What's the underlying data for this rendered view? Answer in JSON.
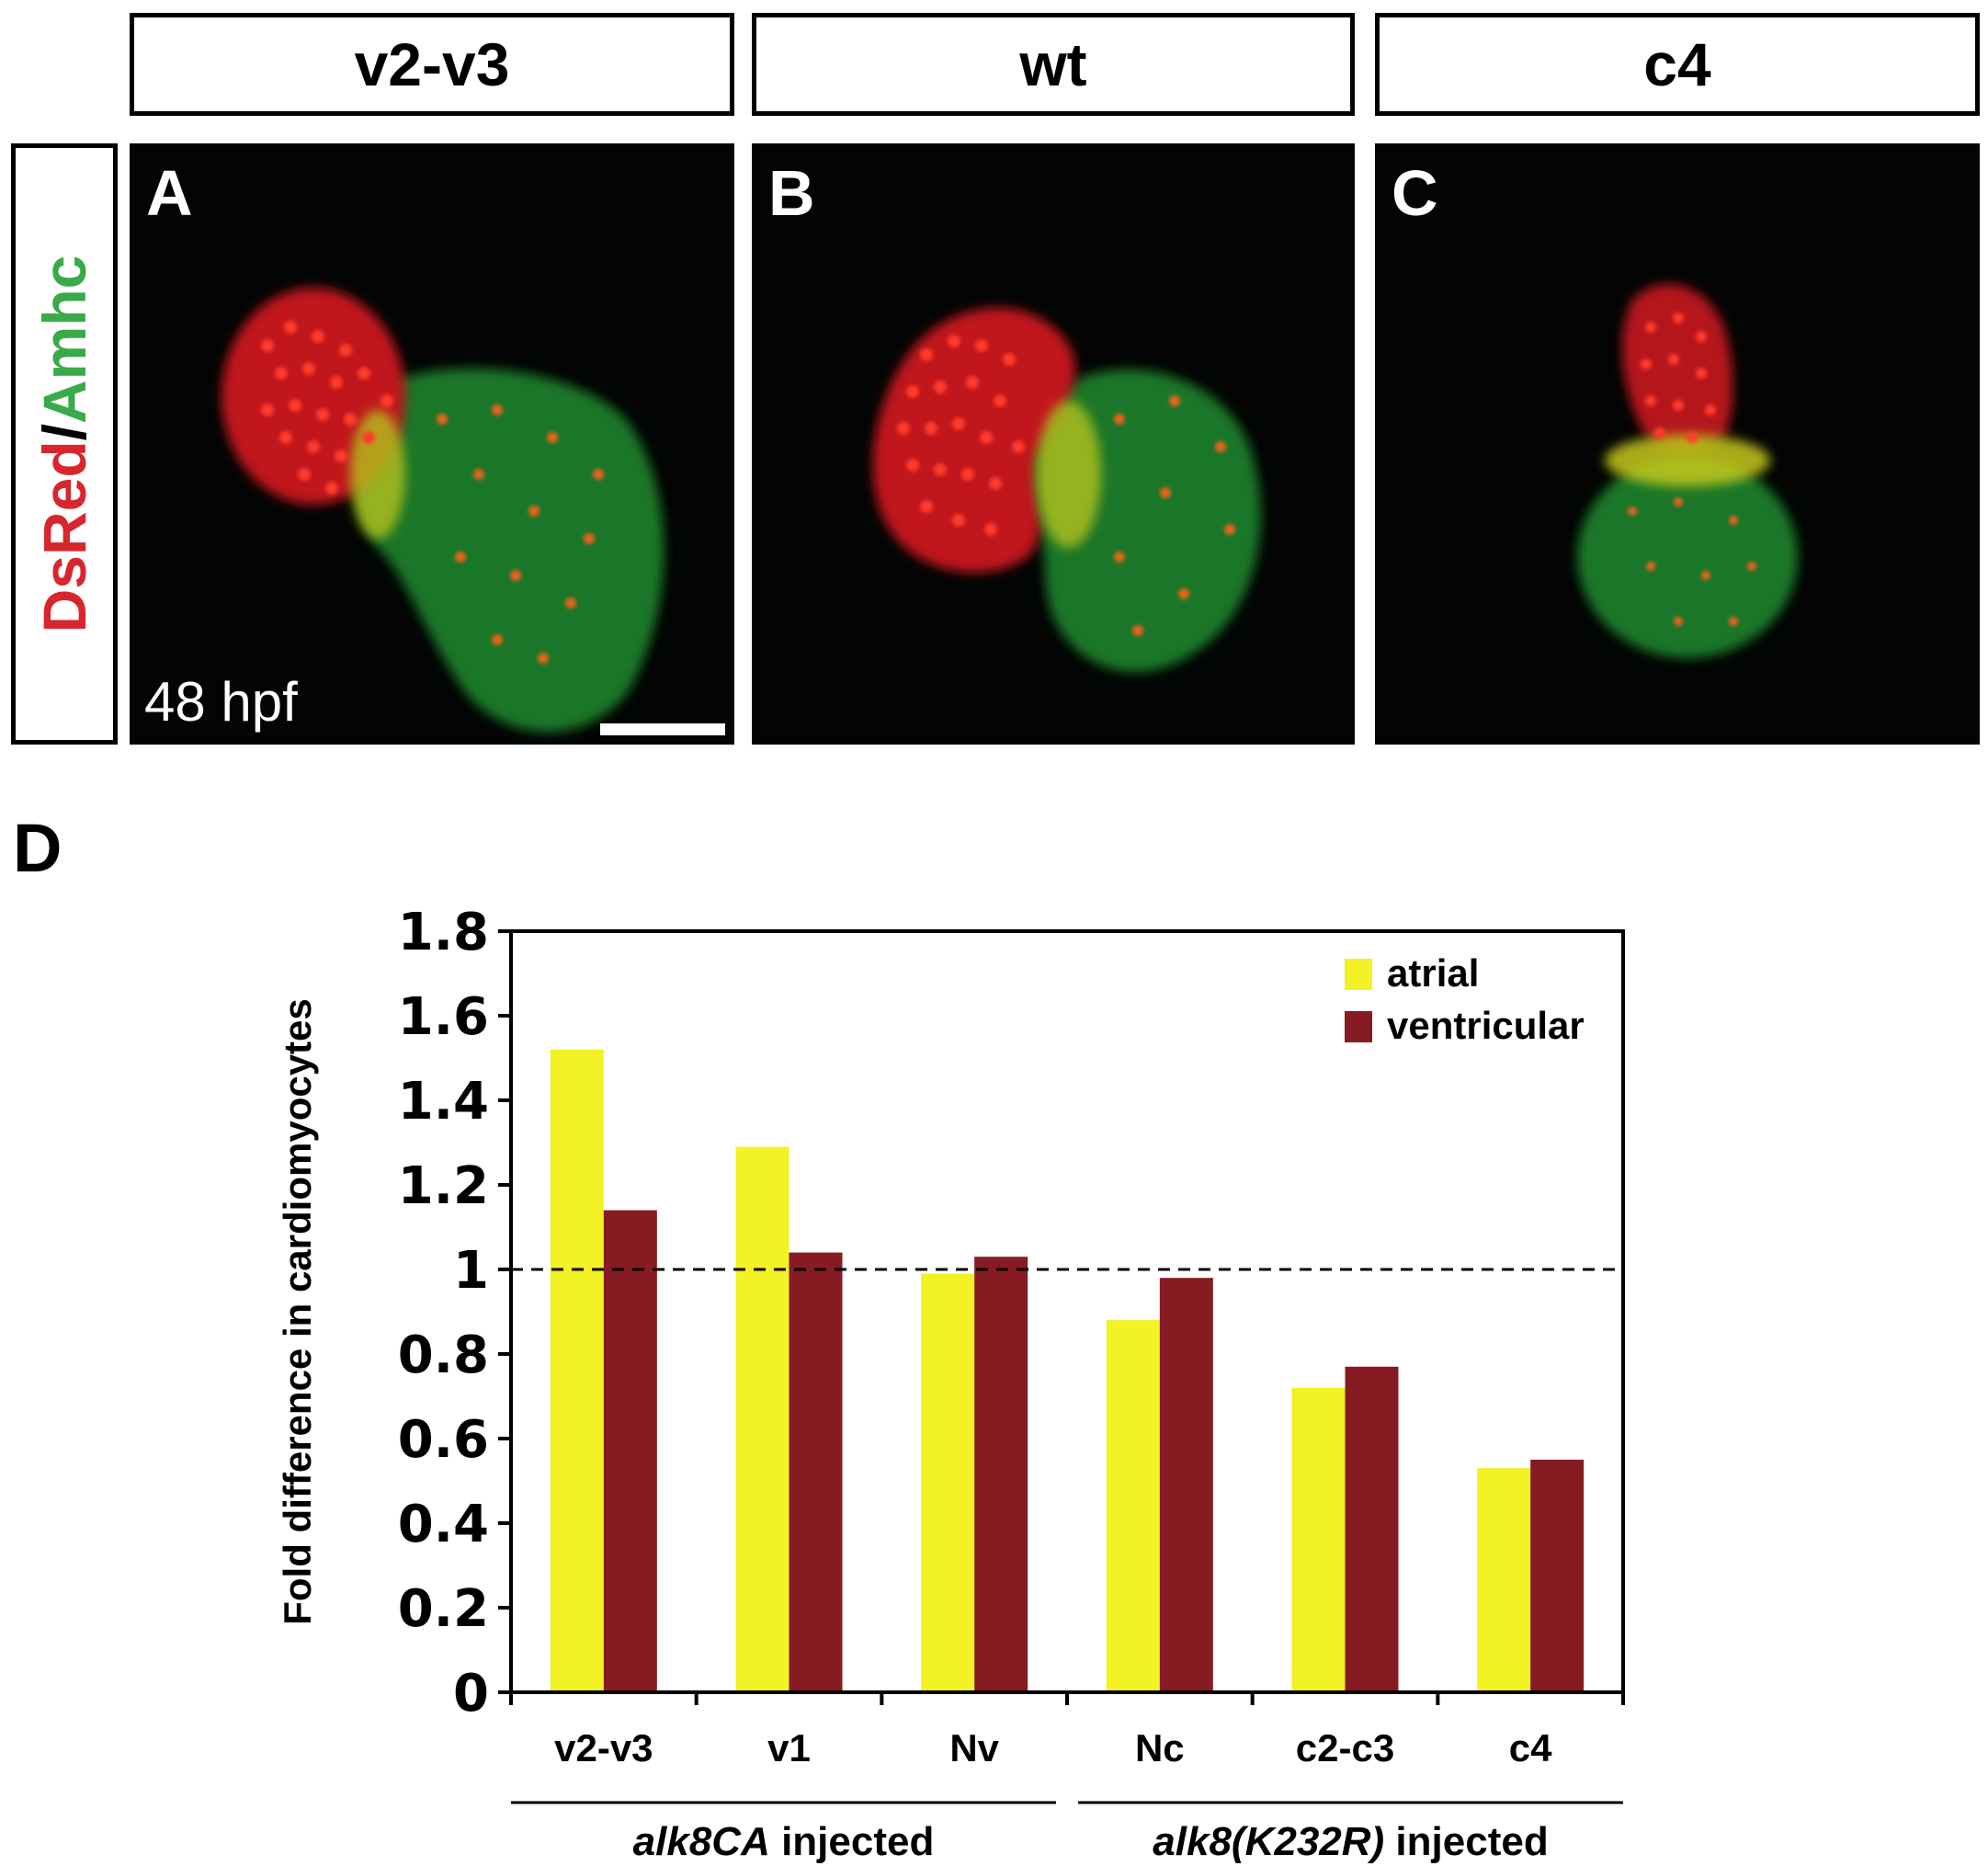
{
  "panels": {
    "headers": [
      "v2-v3",
      "wt",
      "c4"
    ],
    "letters": [
      "A",
      "B",
      "C"
    ],
    "side_label_red": "DsRed",
    "side_label_slash": "/",
    "side_label_green": "Amhc",
    "stage_label": "48 hpf"
  },
  "figure_letter_d": "D",
  "chart_data": {
    "type": "bar",
    "categories": [
      "v2-v3",
      "v1",
      "Nv",
      "Nc",
      "c2-c3",
      "c4"
    ],
    "series": [
      {
        "name": "atrial",
        "color": "#f2f224",
        "values": [
          1.52,
          1.29,
          0.99,
          0.88,
          0.72,
          0.53
        ]
      },
      {
        "name": "ventricular",
        "color": "#861b22",
        "values": [
          1.14,
          1.04,
          1.03,
          0.98,
          0.77,
          0.55
        ]
      }
    ],
    "ylabel": "Fold difference in cardiomyocytes",
    "ylim": [
      0,
      1.8
    ],
    "yticks": [
      "0",
      "0.2",
      "0.4",
      "0.6",
      "0.8",
      "1",
      "1.2",
      "1.4",
      "1.6",
      "1.8"
    ],
    "reference_line": 1,
    "legend_position": "top-right",
    "groups": [
      {
        "label_italic": "alk8CA",
        "label_rest": " injected"
      },
      {
        "label_italic": "alk8(K232R)",
        "label_rest": " injected"
      }
    ]
  }
}
